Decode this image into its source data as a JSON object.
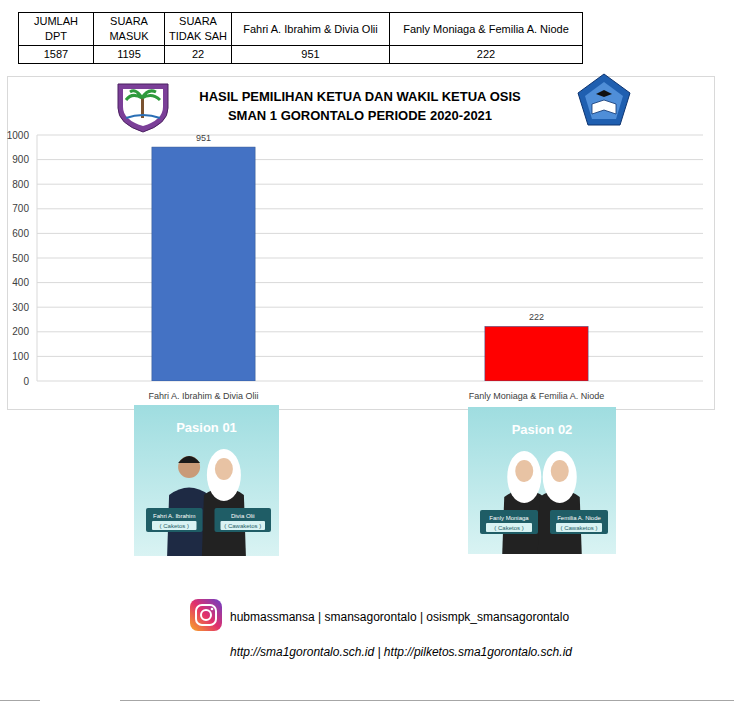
{
  "table": {
    "headers": [
      "JUMLAH DPT",
      "SUARA MASUK",
      "SUARA TIDAK SAH",
      "Fahri A. Ibrahim & Divia Olii",
      "Fanly Moniaga & Femilia A. Niode"
    ],
    "rows": [
      [
        1587,
        1195,
        22,
        951,
        222
      ]
    ]
  },
  "chart_data": {
    "type": "bar",
    "title": "HASIL  PEMILIHAN KETUA DAN WAKIL KETUA OSIS",
    "subtitle": "SMAN 1 GORONTALO PERIODE 2020-2021",
    "categories": [
      "Fahri A. Ibrahim & Divia Olii",
      "Fanly Moniaga & Femilia A. Niode"
    ],
    "values": [
      951,
      222
    ],
    "colors": [
      "#4472c4",
      "#ff0000"
    ],
    "ylim": [
      0,
      1000
    ],
    "yticks": [
      0,
      100,
      200,
      300,
      400,
      500,
      600,
      700,
      800,
      900,
      1000
    ],
    "grid": true,
    "data_labels": true
  },
  "candidates": [
    {
      "label": "Pasion 01",
      "members": [
        {
          "name": "Fahri A. Ibrahim",
          "role": "( Caketos )"
        },
        {
          "name": "Divia Olii",
          "role": "( Cawaketos )"
        }
      ]
    },
    {
      "label": "Pasion 02",
      "members": [
        {
          "name": "Fanly Moniaga",
          "role": "( Caketos )"
        },
        {
          "name": "Femilia A. Niode",
          "role": "( Cawaketos )"
        }
      ]
    }
  ],
  "footer": {
    "social": "hubmassmansa | smansagorontalo | osismpk_smansagorontalo",
    "links": "http://sma1gorontalo.sch.id  | http://pilketos.sma1gorontalo.sch.id"
  }
}
